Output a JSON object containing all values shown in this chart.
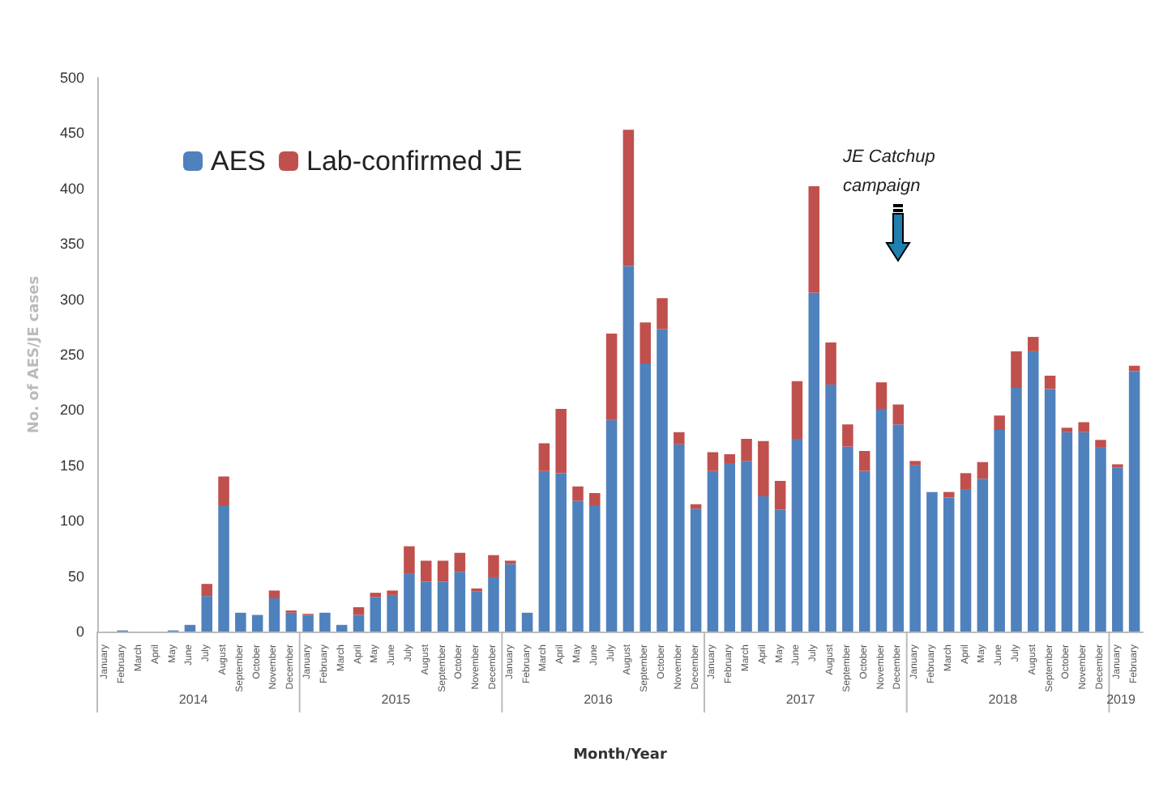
{
  "chart_data": {
    "type": "bar",
    "stacked": true,
    "xlabel": "Month/Year",
    "ylabel": "No. of AES/JE cases",
    "categories": [
      "January",
      "February",
      "March",
      "April",
      "May",
      "June",
      "July",
      "August",
      "September",
      "October",
      "November",
      "December",
      "January",
      "February",
      "March",
      "April",
      "May",
      "June",
      "July",
      "August",
      "September",
      "October",
      "November",
      "December",
      "January",
      "February",
      "March",
      "April",
      "May",
      "June",
      "July",
      "August",
      "September",
      "October",
      "November",
      "December",
      "January",
      "February",
      "March",
      "April",
      "May",
      "June",
      "July",
      "August",
      "September",
      "October",
      "November",
      "December",
      "January",
      "February",
      "March",
      "April",
      "May",
      "June",
      "July",
      "August",
      "September",
      "October",
      "November",
      "December",
      "January",
      "February"
    ],
    "series": [
      {
        "name": "AES",
        "color": "#4f81bd",
        "values": [
          0,
          1,
          0,
          0,
          1,
          6,
          32,
          114,
          17,
          15,
          30,
          17,
          15,
          17,
          6,
          15,
          31,
          33,
          52,
          45,
          45,
          54,
          36,
          49,
          61,
          17,
          145,
          143,
          118,
          114,
          191,
          330,
          242,
          273,
          169,
          111,
          145,
          152,
          154,
          122,
          110,
          174,
          306,
          223,
          167,
          145,
          201,
          187,
          150,
          126,
          121,
          128,
          138,
          182,
          220,
          253,
          219,
          180,
          180,
          166,
          148,
          235
        ]
      },
      {
        "name": "Lab-confirmed JE",
        "color": "#c0504d",
        "values": [
          0,
          0,
          0,
          0,
          0,
          0,
          11,
          26,
          0,
          0,
          7,
          2,
          1,
          0,
          0,
          7,
          4,
          4,
          25,
          19,
          19,
          17,
          3,
          20,
          3,
          0,
          25,
          58,
          13,
          11,
          78,
          123,
          37,
          28,
          11,
          4,
          17,
          8,
          20,
          50,
          26,
          52,
          96,
          38,
          20,
          18,
          24,
          18,
          4,
          0,
          5,
          15,
          15,
          13,
          33,
          13,
          12,
          4,
          9,
          7,
          3,
          5
        ]
      }
    ],
    "ylim": [
      0,
      500
    ],
    "yticks": [
      0,
      50,
      100,
      150,
      200,
      250,
      300,
      350,
      400,
      450,
      500
    ],
    "legend": "top left",
    "annotations": [
      "2014",
      "2015",
      "2016",
      "2017",
      "2018",
      "2019",
      "JE Catchup campaign"
    ]
  }
}
